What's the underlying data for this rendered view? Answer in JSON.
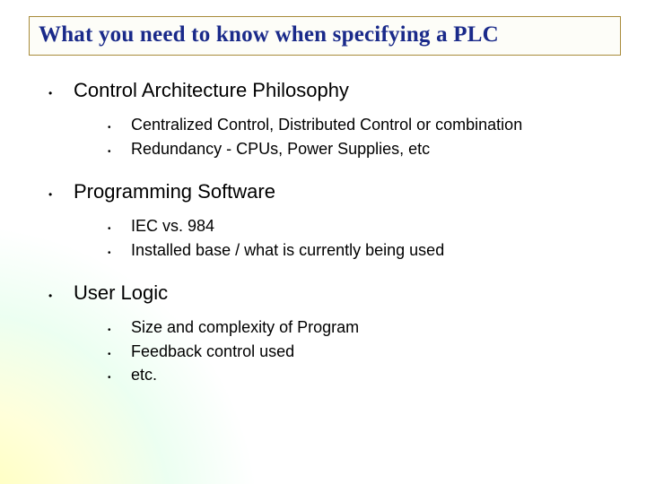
{
  "title": "What you need to know when specifying a PLC",
  "title_color": "#1a2a8a",
  "title_border_color": "#a88b3a",
  "title_fontsize": 25,
  "l1_fontsize": 22,
  "l2_fontsize": 18,
  "background_gradient": {
    "type": "radial",
    "center": "-40px 580px",
    "stops": [
      "#ffff78",
      "#b4ffc8",
      "#ffffff"
    ]
  },
  "sections": [
    {
      "heading": "Control Architecture Philosophy",
      "items": [
        "Centralized Control, Distributed Control or combination",
        "Redundancy - CPUs, Power Supplies, etc"
      ]
    },
    {
      "heading": "Programming Software",
      "items": [
        "IEC vs. 984",
        "Installed base / what is currently being used"
      ]
    },
    {
      "heading": "User Logic",
      "items": [
        "Size and complexity of Program",
        "Feedback control used",
        "etc."
      ]
    }
  ]
}
